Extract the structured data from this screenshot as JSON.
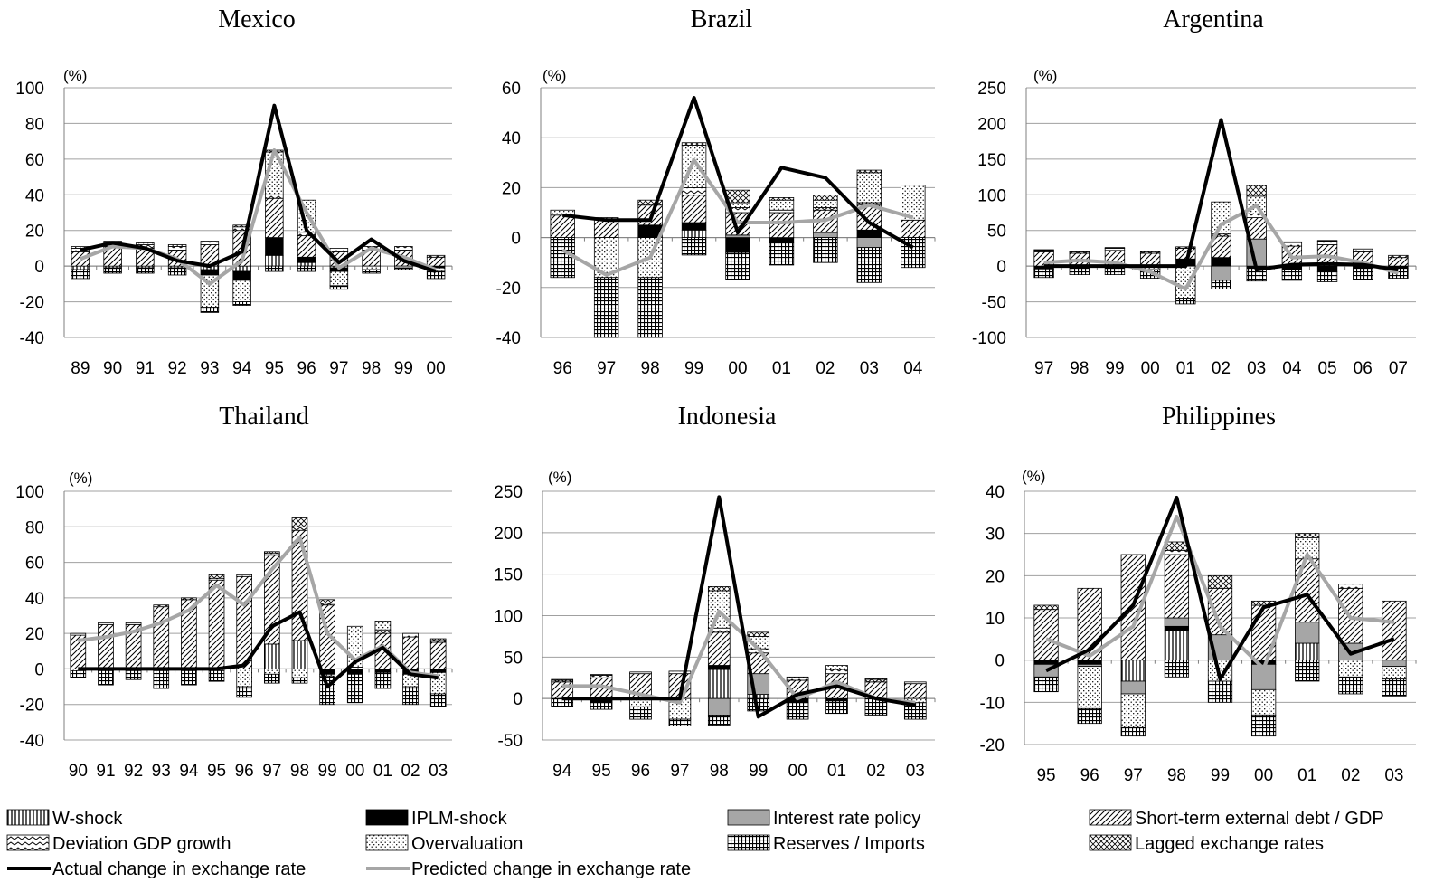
{
  "colors": {
    "actual": "#000000",
    "predicted": "#a6a6a6",
    "grid": "#a0a0a0",
    "axis": "#7f7f7f",
    "interest_fill": "#a6a6a6",
    "iplm_fill": "#000000"
  },
  "legend": [
    {
      "key": "w",
      "label": "W-shock",
      "pattern": "vertical-lines"
    },
    {
      "key": "iplm",
      "label": "IPLM-shock",
      "pattern": "solid-black"
    },
    {
      "key": "ir",
      "label": "Interest rate policy",
      "pattern": "solid-gray"
    },
    {
      "key": "st",
      "label": "Short-term external debt / GDP",
      "pattern": "diagonal-lines"
    },
    {
      "key": "gdp",
      "label": "Deviation GDP growth",
      "pattern": "zigzag"
    },
    {
      "key": "ov",
      "label": "Overvaluation",
      "pattern": "dots"
    },
    {
      "key": "res",
      "label": "Reserves / Imports",
      "pattern": "grid"
    },
    {
      "key": "lag",
      "label": "Lagged exchange rates",
      "pattern": "crosshatch"
    },
    {
      "key": "actual",
      "label": "Actual change in exchange rate",
      "pattern": "black-line"
    },
    {
      "key": "pred",
      "label": "Predicted change in exchange rate",
      "pattern": "gray-line"
    }
  ],
  "chart_data": [
    {
      "type": "bar",
      "stacked": true,
      "title": "Mexico",
      "unit_label": "(%)",
      "ylim": [
        -40,
        100
      ],
      "yticks": [
        -40,
        -20,
        0,
        20,
        40,
        60,
        80,
        100
      ],
      "categories": [
        "89",
        "90",
        "91",
        "92",
        "93",
        "94",
        "95",
        "96",
        "97",
        "98",
        "99",
        "00"
      ],
      "components": {
        "w": [
          -2,
          -1,
          -1,
          -1,
          -2,
          -3,
          6,
          2,
          -1,
          0,
          0,
          0
        ],
        "iplm": [
          0,
          0,
          0,
          0,
          -3,
          -5,
          10,
          3,
          -2,
          0,
          0,
          -1
        ],
        "ir": [
          0,
          0,
          0,
          0,
          0,
          0,
          0,
          0,
          0,
          0,
          0,
          0
        ],
        "st": [
          8,
          11,
          10,
          9,
          12,
          20,
          22,
          12,
          8,
          9,
          9,
          5
        ],
        "gdp": [
          2,
          2,
          2,
          2,
          2,
          2,
          2,
          2,
          2,
          2,
          2,
          1
        ],
        "ov": [
          1,
          1,
          1,
          1,
          -18,
          -12,
          24,
          18,
          -8,
          -2,
          -1,
          -2
        ],
        "res": [
          -5,
          -3,
          -3,
          -4,
          -3,
          -2,
          -3,
          -3,
          -2,
          -2,
          -1,
          -4
        ],
        "lag": [
          0,
          0,
          0,
          0,
          0,
          1,
          1,
          0,
          0,
          0,
          0,
          0
        ]
      },
      "actual": [
        9,
        13,
        10,
        3,
        0,
        8,
        90,
        20,
        2,
        15,
        3,
        -3
      ],
      "predicted": [
        4,
        11,
        10,
        4,
        -10,
        3,
        65,
        30,
        -1,
        10,
        5,
        -2
      ]
    },
    {
      "type": "bar",
      "stacked": true,
      "title": "Brazil",
      "unit_label": "(%)",
      "ylim": [
        -40,
        60
      ],
      "yticks": [
        -40,
        -20,
        0,
        20,
        40,
        60
      ],
      "categories": [
        "96",
        "97",
        "98",
        "99",
        "00",
        "01",
        "02",
        "03",
        "04"
      ],
      "components": {
        "w": [
          0,
          0,
          0,
          3,
          0,
          0,
          0,
          0,
          0
        ],
        "iplm": [
          0,
          0,
          5,
          3,
          -6,
          -2,
          0,
          3,
          0
        ],
        "ir": [
          0,
          0,
          0,
          0,
          1,
          0,
          2,
          -4,
          0
        ],
        "st": [
          9,
          8,
          8,
          11,
          9,
          10,
          9,
          10,
          7
        ],
        "gdp": [
          0,
          0,
          0,
          3,
          2,
          1,
          1,
          1,
          0
        ],
        "ov": [
          2,
          -16,
          -16,
          17,
          2,
          4,
          3,
          12,
          14
        ],
        "res": [
          -16,
          -24,
          -24,
          -7,
          -11,
          -9,
          -10,
          -14,
          -12
        ],
        "lag": [
          0,
          0,
          2,
          1,
          5,
          1,
          2,
          1,
          0
        ]
      },
      "actual": [
        9,
        7,
        7,
        56,
        2,
        28,
        24,
        6,
        -4
      ],
      "predicted": [
        -5,
        -15,
        -8,
        31,
        6,
        6,
        7,
        13,
        8
      ]
    },
    {
      "type": "bar",
      "stacked": true,
      "title": "Argentina",
      "unit_label": "(%)",
      "ylim": [
        -100,
        250
      ],
      "yticks": [
        -100,
        -50,
        0,
        50,
        100,
        150,
        200,
        250
      ],
      "categories": [
        "97",
        "98",
        "99",
        "00",
        "01",
        "02",
        "03",
        "04",
        "05",
        "06",
        "07"
      ],
      "components": {
        "w": [
          0,
          0,
          0,
          0,
          0,
          0,
          0,
          0,
          0,
          0,
          0
        ],
        "iplm": [
          -4,
          -2,
          -2,
          0,
          10,
          12,
          -3,
          -5,
          -8,
          -3,
          -3
        ],
        "ir": [
          0,
          0,
          0,
          0,
          0,
          -20,
          38,
          0,
          0,
          0,
          0
        ],
        "st": [
          20,
          18,
          22,
          18,
          15,
          30,
          30,
          28,
          30,
          20,
          12
        ],
        "gdp": [
          2,
          2,
          3,
          2,
          2,
          3,
          5,
          5,
          5,
          4,
          3
        ],
        "ov": [
          1,
          1,
          1,
          -5,
          -45,
          45,
          25,
          1,
          1,
          0,
          0
        ],
        "res": [
          -12,
          -10,
          -10,
          -12,
          -8,
          -12,
          -18,
          -15,
          -14,
          -16,
          -14
        ],
        "lag": [
          0,
          0,
          0,
          0,
          0,
          0,
          15,
          0,
          0,
          0,
          0
        ]
      },
      "actual": [
        0,
        0,
        0,
        0,
        0,
        205,
        -5,
        2,
        3,
        2,
        -5
      ],
      "predicted": [
        5,
        8,
        5,
        -8,
        -32,
        58,
        85,
        12,
        14,
        5,
        -10
      ]
    },
    {
      "type": "bar",
      "stacked": true,
      "title": "Thailand",
      "unit_label": "(%)",
      "ylim": [
        -40,
        100
      ],
      "yticks": [
        -40,
        -20,
        0,
        20,
        40,
        60,
        80,
        100
      ],
      "categories": [
        "90",
        "91",
        "92",
        "93",
        "94",
        "95",
        "96",
        "97",
        "98",
        "99",
        "00",
        "01",
        "02",
        "03"
      ],
      "components": {
        "w": [
          0,
          0,
          0,
          0,
          0,
          0,
          0,
          14,
          16,
          0,
          0,
          0,
          0,
          0
        ],
        "iplm": [
          0,
          0,
          0,
          0,
          0,
          0,
          0,
          0,
          0,
          -3,
          -3,
          -2,
          -3,
          -2
        ],
        "ir": [
          0,
          0,
          0,
          0,
          0,
          0,
          0,
          0,
          0,
          0,
          0,
          0,
          0,
          0
        ],
        "st": [
          19,
          25,
          25,
          35,
          39,
          50,
          52,
          50,
          62,
          36,
          0,
          20,
          18,
          15
        ],
        "gdp": [
          1,
          1,
          1,
          1,
          1,
          1,
          1,
          1,
          2,
          1,
          1,
          2,
          2,
          1
        ],
        "ov": [
          -1,
          -1,
          -1,
          -1,
          -1,
          -1,
          -10,
          -3,
          -5,
          -1,
          23,
          5,
          -7,
          -12
        ],
        "res": [
          -4,
          -8,
          -5,
          -10,
          -8,
          -6,
          -6,
          -5,
          -3,
          -16,
          -16,
          -9,
          -10,
          -7
        ],
        "lag": [
          0,
          0,
          0,
          0,
          0,
          2,
          0,
          1,
          5,
          2,
          0,
          0,
          0,
          1
        ]
      },
      "actual": [
        0,
        0,
        0,
        0,
        0,
        0,
        2,
        24,
        32,
        -10,
        4,
        12,
        -3,
        -5
      ],
      "predicted": [
        16,
        18,
        21,
        26,
        33,
        47,
        36,
        56,
        74,
        20,
        5,
        13,
        -2,
        -4
      ]
    },
    {
      "type": "bar",
      "stacked": true,
      "title": "Indonesia",
      "unit_label": "(%)",
      "ylim": [
        -50,
        250
      ],
      "yticks": [
        -50,
        0,
        50,
        100,
        150,
        200,
        250
      ],
      "categories": [
        "94",
        "95",
        "96",
        "97",
        "98",
        "99",
        "00",
        "01",
        "02",
        "03"
      ],
      "components": {
        "w": [
          0,
          0,
          0,
          0,
          35,
          5,
          0,
          0,
          0,
          0
        ],
        "iplm": [
          0,
          -5,
          0,
          0,
          5,
          0,
          -5,
          -3,
          0,
          0
        ],
        "ir": [
          0,
          0,
          0,
          0,
          -20,
          25,
          0,
          0,
          0,
          0
        ],
        "st": [
          20,
          25,
          30,
          30,
          40,
          25,
          22,
          30,
          20,
          18
        ],
        "gdp": [
          2,
          3,
          2,
          3,
          5,
          5,
          3,
          5,
          3,
          2
        ],
        "ov": [
          1,
          1,
          -10,
          -25,
          45,
          15,
          1,
          5,
          1,
          -5
        ],
        "res": [
          -10,
          -8,
          -15,
          -8,
          -12,
          -15,
          -20,
          -15,
          -20,
          -20
        ],
        "lag": [
          0,
          0,
          0,
          0,
          5,
          5,
          0,
          0,
          0,
          0
        ]
      },
      "actual": [
        0,
        0,
        0,
        0,
        243,
        -22,
        5,
        15,
        0,
        -8
      ],
      "predicted": [
        15,
        15,
        5,
        -5,
        105,
        60,
        0,
        20,
        0,
        -5
      ]
    },
    {
      "type": "bar",
      "stacked": true,
      "title": "Philippines",
      "unit_label": "(%)",
      "ylim": [
        -20,
        40
      ],
      "yticks": [
        -20,
        -10,
        0,
        10,
        20,
        30,
        40
      ],
      "categories": [
        "95",
        "96",
        "97",
        "98",
        "99",
        "00",
        "01",
        "02",
        "03"
      ],
      "components": {
        "w": [
          0,
          0,
          -5,
          7,
          0,
          0,
          4,
          0,
          0
        ],
        "iplm": [
          -1,
          -1,
          0,
          1,
          0,
          -1,
          0,
          0,
          0
        ],
        "ir": [
          -3,
          -0.5,
          -3,
          2,
          6,
          -6,
          5,
          4,
          -1.5
        ],
        "st": [
          12,
          17,
          25,
          15,
          11,
          13,
          15,
          13,
          14
        ],
        "gdp": [
          0,
          0,
          0,
          1,
          0,
          0,
          0,
          1,
          0
        ],
        "ov": [
          0,
          -10,
          -8,
          0,
          -5,
          -6,
          5,
          -4,
          -3
        ],
        "res": [
          -3.5,
          -3.5,
          -2,
          -4,
          -5,
          -5,
          -5,
          -4,
          -4
        ],
        "lag": [
          1,
          0,
          0,
          2,
          3,
          1,
          1,
          0,
          0
        ]
      },
      "actual": [
        -2.5,
        2.5,
        13,
        38.5,
        -4.5,
        12.5,
        15.5,
        1.5,
        5
      ],
      "predicted": [
        5,
        1,
        8,
        34,
        8,
        -2,
        25,
        10,
        9
      ]
    }
  ]
}
